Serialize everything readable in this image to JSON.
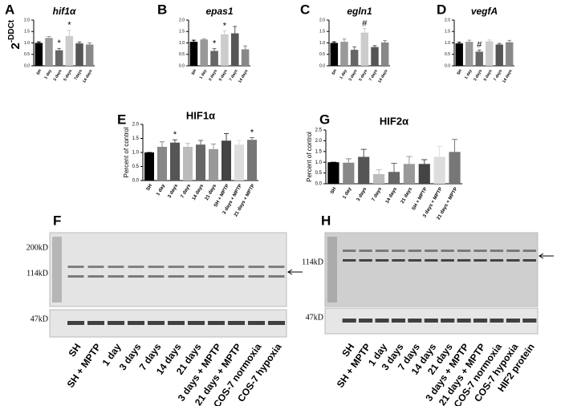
{
  "chart_data": [
    {
      "type": "bar",
      "panel": "A",
      "title": "hif1α",
      "ylabel": "2",
      "ylabel_sup": "-DDCt",
      "categories": [
        "SH",
        "1 day",
        "3 days",
        "5 days",
        "7days",
        "14 days"
      ],
      "values": [
        1.0,
        1.22,
        0.68,
        1.3,
        0.98,
        0.93
      ],
      "errors": [
        0.05,
        0.06,
        0.08,
        0.25,
        0.06,
        0.07
      ],
      "colors": [
        "#000000",
        "#999999",
        "#666666",
        "#cccccc",
        "#555555",
        "#888888"
      ],
      "ylim": [
        0,
        2
      ],
      "yticks": [
        {
          "value": 0,
          "label": "0.0"
        },
        {
          "value": 0.5,
          "label": "0.5"
        },
        {
          "value": 1,
          "label": "1.0"
        },
        {
          "value": 1.5,
          "label": "1.5"
        },
        {
          "value": 2,
          "label": "2.0"
        }
      ],
      "annotations": [
        {
          "category": "3 days",
          "text": "*"
        },
        {
          "category": "5 days",
          "text": "*"
        }
      ]
    },
    {
      "type": "bar",
      "panel": "B",
      "title": "epas1",
      "categories": [
        "SH",
        "1 day",
        "3 days",
        "5 days",
        "7 days",
        "14 days"
      ],
      "values": [
        1.05,
        1.15,
        0.65,
        1.38,
        1.42,
        0.72
      ],
      "errors": [
        0.07,
        0.03,
        0.1,
        0.15,
        0.3,
        0.15
      ],
      "colors": [
        "#000000",
        "#999999",
        "#666666",
        "#cccccc",
        "#555555",
        "#888888"
      ],
      "ylim": [
        0,
        2
      ],
      "yticks": [
        {
          "value": 0,
          "label": "0.0"
        },
        {
          "value": 0.5,
          "label": "0.5"
        },
        {
          "value": 1,
          "label": "1.0"
        },
        {
          "value": 1.5,
          "label": "1.5"
        },
        {
          "value": 2,
          "label": "2.0"
        }
      ],
      "annotations": [
        {
          "category": "3 days",
          "text": "*"
        },
        {
          "category": "5 days",
          "text": "*"
        }
      ]
    },
    {
      "type": "bar",
      "panel": "C",
      "title": "egln1",
      "categories": [
        "SH",
        "1 day",
        "3 days",
        "5 days",
        "7 days",
        "14 days"
      ],
      "values": [
        1.0,
        1.05,
        0.7,
        1.45,
        0.82,
        1.02
      ],
      "errors": [
        0.05,
        0.12,
        0.13,
        0.18,
        0.06,
        0.08
      ],
      "colors": [
        "#000000",
        "#999999",
        "#666666",
        "#cccccc",
        "#555555",
        "#888888"
      ],
      "ylim": [
        0,
        2
      ],
      "yticks": [
        {
          "value": 0,
          "label": "0.0"
        },
        {
          "value": 0.5,
          "label": "0.5"
        },
        {
          "value": 1,
          "label": "1.0"
        },
        {
          "value": 1.5,
          "label": "1.5"
        },
        {
          "value": 2,
          "label": "2.0"
        }
      ],
      "annotations": [
        {
          "category": "5 days",
          "text": "#"
        }
      ]
    },
    {
      "type": "bar",
      "panel": "D",
      "title": "vegfA",
      "categories": [
        "SH",
        "1 day",
        "3 days",
        "5 days",
        "7 days",
        "14 days"
      ],
      "values": [
        0.98,
        1.05,
        0.62,
        1.07,
        0.93,
        1.03
      ],
      "errors": [
        0.05,
        0.07,
        0.07,
        0.06,
        0.05,
        0.08
      ],
      "colors": [
        "#000000",
        "#999999",
        "#666666",
        "#cccccc",
        "#555555",
        "#888888"
      ],
      "ylim": [
        0,
        2
      ],
      "yticks": [
        {
          "value": 0,
          "label": "0.0"
        },
        {
          "value": 0.5,
          "label": "0.5"
        },
        {
          "value": 1,
          "label": "1.0"
        },
        {
          "value": 1.5,
          "label": "1.5"
        },
        {
          "value": 2,
          "label": "2.0"
        }
      ],
      "annotations": [
        {
          "category": "3 days",
          "text": "#"
        }
      ]
    },
    {
      "type": "bar",
      "panel": "E",
      "title": "HIF1α",
      "ylabel": "Percent of control",
      "categories": [
        "SH",
        "1 day",
        "3 days",
        "7 days",
        "14 days",
        "21 days",
        "SH + MPTP",
        "3 days + MPTP",
        "21 days + MPTP"
      ],
      "values": [
        1.0,
        1.2,
        1.35,
        1.2,
        1.28,
        1.12,
        1.42,
        1.28,
        1.45
      ],
      "errors": [
        0,
        0.18,
        0.1,
        0.12,
        0.15,
        0.18,
        0.25,
        0.15,
        0.08
      ],
      "colors": [
        "#000000",
        "#888888",
        "#555555",
        "#bbbbbb",
        "#666666",
        "#999999",
        "#444444",
        "#dddddd",
        "#777777"
      ],
      "ylim": [
        0,
        2
      ],
      "yticks": [
        {
          "value": 0,
          "label": "0.0"
        },
        {
          "value": 0.5,
          "label": "0.5"
        },
        {
          "value": 1,
          "label": "1.0"
        },
        {
          "value": 1.5,
          "label": "1.5"
        },
        {
          "value": 2,
          "label": "2.0"
        }
      ],
      "annotations": [
        {
          "category": "3 days",
          "text": "*"
        },
        {
          "category": "21 days + MPTP",
          "text": "*"
        }
      ]
    },
    {
      "type": "bar",
      "panel": "G",
      "title": "HIF2α",
      "ylabel": "Percent of control",
      "categories": [
        "SH",
        "1 day",
        "3 days",
        "7 days",
        "14 days",
        "21 days",
        "SH + MPTP",
        "3 days + MPTP",
        "21 days + MPTP"
      ],
      "values": [
        1.0,
        0.98,
        1.25,
        0.45,
        0.55,
        0.92,
        0.92,
        1.25,
        1.48
      ],
      "errors": [
        0,
        0.18,
        0.35,
        0.2,
        0.4,
        0.35,
        0.2,
        0.48,
        0.58
      ],
      "colors": [
        "#000000",
        "#888888",
        "#555555",
        "#bbbbbb",
        "#666666",
        "#999999",
        "#444444",
        "#dddddd",
        "#777777"
      ],
      "ylim": [
        0,
        2.5
      ],
      "yticks": [
        {
          "value": 0,
          "label": "0.0"
        },
        {
          "value": 0.5,
          "label": "0.5"
        },
        {
          "value": 1,
          "label": "1.0"
        },
        {
          "value": 1.5,
          "label": "1.5"
        },
        {
          "value": 2,
          "label": "2.0"
        },
        {
          "value": 2.5,
          "label": "2.5"
        }
      ],
      "annotations": []
    }
  ],
  "blots": [
    {
      "panel": "F",
      "markers": [
        "200kD",
        "114kD",
        "47kD"
      ],
      "lanes": [
        "SH",
        "SH + MPTP",
        "1 day",
        "3 days",
        "7 days",
        "14 days",
        "21 days",
        "3 days + MPTP",
        "21 days + MPTP",
        "COS-7 normoxia",
        "COS-7 hypoxia"
      ]
    },
    {
      "panel": "H",
      "markers": [
        "114kD",
        "47kD"
      ],
      "lanes": [
        "SH",
        "SH + MPTP",
        "1 day",
        "3 days",
        "7 days",
        "14 days",
        "21 days",
        "3 days + MPTP",
        "21 days + MPTP",
        "COS-7 normoxia",
        "COS-7 hypoxia",
        "HIF2 protein"
      ]
    }
  ]
}
